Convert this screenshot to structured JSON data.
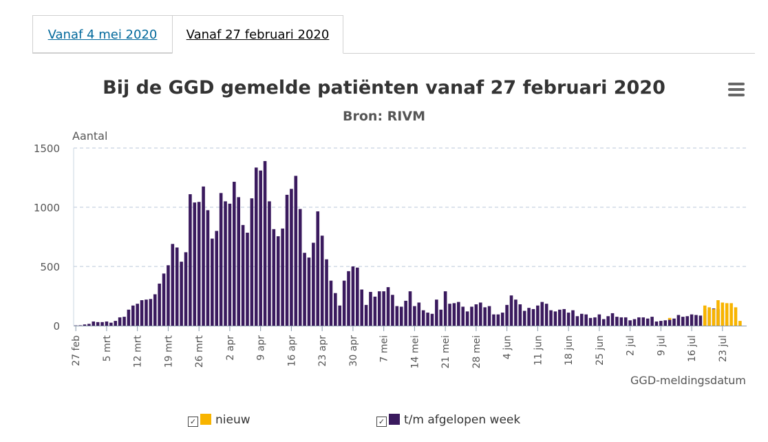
{
  "tabs": [
    {
      "label": "Vanaf 4 mei 2020",
      "active": false
    },
    {
      "label": "Vanaf 27 februari 2020",
      "active": true
    }
  ],
  "menu": {
    "icon": "hamburger-menu-icon"
  },
  "colors": {
    "new": "#f8b400",
    "week": "#3a1a5e",
    "grid": "#b8c7d8"
  },
  "legend": {
    "new_label": "nieuw",
    "week_label": "t/m afgelopen week",
    "checkbox_icon": "checkbox-checked-icon"
  },
  "chart_data": {
    "type": "bar",
    "title": "Bij de GGD gemelde patiënten vanaf 27 februari 2020",
    "subtitle": "Bron: RIVM",
    "ylabel": "Aantal",
    "xlabel": "GGD-meldingsdatum",
    "ylim": [
      0,
      1500
    ],
    "yticks": [
      0,
      500,
      1000,
      1500
    ],
    "grid": true,
    "legend_position": "bottom",
    "x_start": "2020-02-27",
    "x_end": "2020-07-28",
    "xticks": [
      {
        "date": "2020-02-27",
        "label": "27 feb"
      },
      {
        "date": "2020-03-05",
        "label": "5 mrt"
      },
      {
        "date": "2020-03-12",
        "label": "12 mrt"
      },
      {
        "date": "2020-03-19",
        "label": "19 mrt"
      },
      {
        "date": "2020-03-26",
        "label": "26 mrt"
      },
      {
        "date": "2020-04-02",
        "label": "2 apr"
      },
      {
        "date": "2020-04-09",
        "label": "9 apr"
      },
      {
        "date": "2020-04-16",
        "label": "16 apr"
      },
      {
        "date": "2020-04-23",
        "label": "23 apr"
      },
      {
        "date": "2020-04-30",
        "label": "30 apr"
      },
      {
        "date": "2020-05-07",
        "label": "7 mei"
      },
      {
        "date": "2020-05-14",
        "label": "14 mei"
      },
      {
        "date": "2020-05-21",
        "label": "21 mei"
      },
      {
        "date": "2020-05-28",
        "label": "28 mei"
      },
      {
        "date": "2020-06-04",
        "label": "4 jun"
      },
      {
        "date": "2020-06-11",
        "label": "11 jun"
      },
      {
        "date": "2020-06-18",
        "label": "18 jun"
      },
      {
        "date": "2020-06-25",
        "label": "25 jun"
      },
      {
        "date": "2020-07-02",
        "label": "2 jul"
      },
      {
        "date": "2020-07-09",
        "label": "9 jul"
      },
      {
        "date": "2020-07-16",
        "label": "16 jul"
      },
      {
        "date": "2020-07-23",
        "label": "23 jul"
      }
    ],
    "series": [
      {
        "name": "t/m afgelopen week",
        "color": "#3a1a5e",
        "start_date": "2020-02-27",
        "values": [
          2,
          3,
          10,
          15,
          35,
          30,
          30,
          35,
          25,
          40,
          70,
          75,
          135,
          170,
          185,
          215,
          220,
          225,
          265,
          355,
          440,
          510,
          690,
          660,
          540,
          620,
          1110,
          1040,
          1045,
          1175,
          975,
          735,
          800,
          1120,
          1050,
          1030,
          1215,
          1085,
          850,
          785,
          1075,
          1335,
          1310,
          1390,
          1050,
          815,
          755,
          820,
          1105,
          1155,
          1265,
          985,
          615,
          575,
          700,
          965,
          760,
          560,
          380,
          275,
          170,
          380,
          460,
          500,
          490,
          305,
          175,
          285,
          245,
          290,
          290,
          325,
          260,
          165,
          160,
          210,
          290,
          165,
          195,
          130,
          110,
          100,
          220,
          135,
          290,
          185,
          190,
          200,
          160,
          120,
          160,
          180,
          195,
          155,
          165,
          95,
          95,
          110,
          175,
          255,
          220,
          180,
          125,
          150,
          140,
          170,
          200,
          185,
          130,
          120,
          135,
          140,
          110,
          130,
          80,
          100,
          95,
          65,
          70,
          95,
          55,
          80,
          105,
          75,
          70,
          70,
          45,
          55,
          70,
          70,
          60,
          75,
          35,
          40,
          45,
          50,
          60,
          90,
          75,
          80,
          95,
          90,
          85,
          140,
          130,
          145,
          140,
          130,
          30
        ],
        "partial": [
          [
            135,
            15
          ]
        ]
      },
      {
        "name": "nieuw",
        "color": "#f8b400",
        "start_date": "2020-07-19",
        "values": [
          170,
          155,
          140,
          215,
          195,
          190,
          190,
          155,
          40
        ]
      }
    ]
  }
}
